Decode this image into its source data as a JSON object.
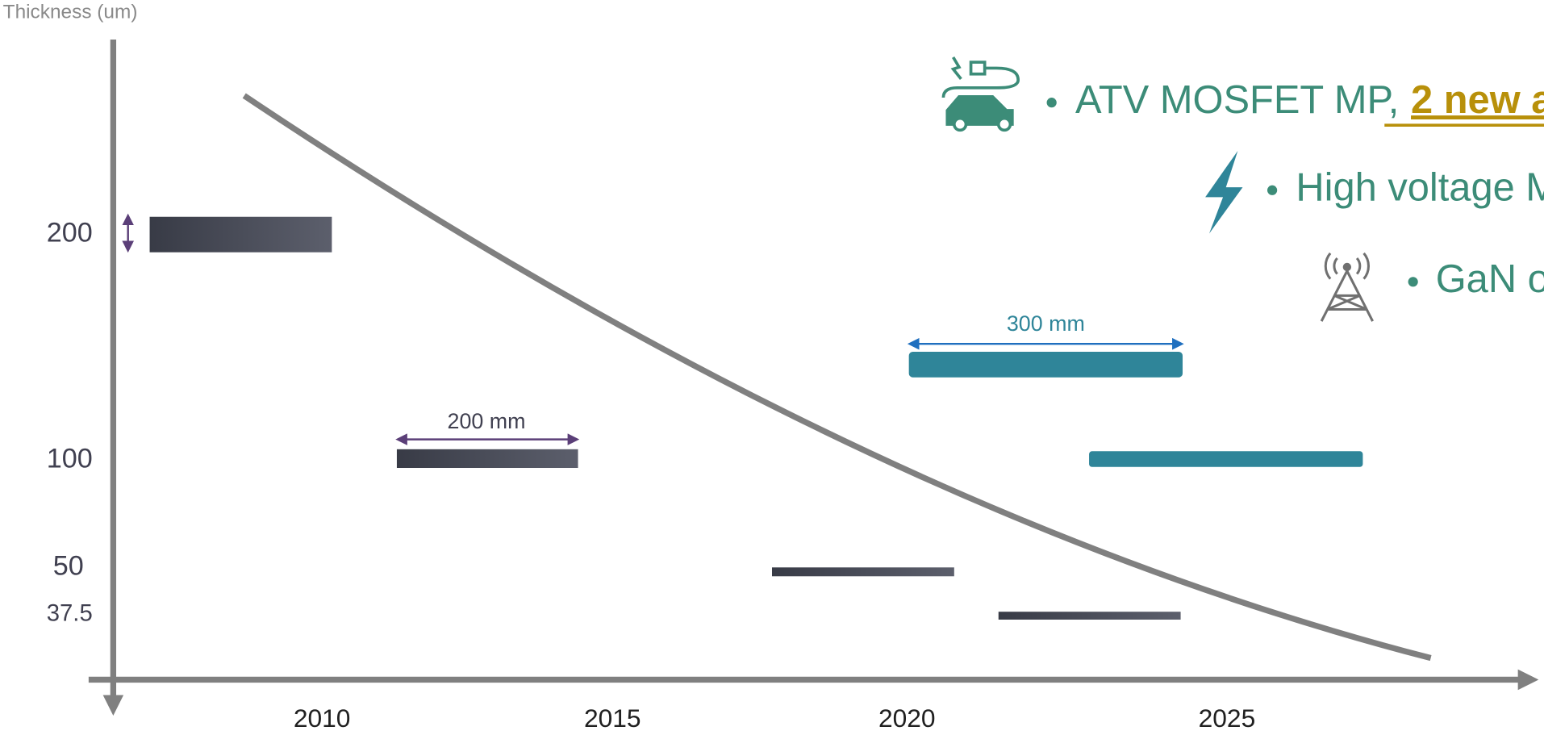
{
  "axis_title": "Thickness (um)",
  "y_labels": [
    "200",
    "100",
    "50",
    "37.5"
  ],
  "x_labels": [
    "2010",
    "2015",
    "2020",
    "2025"
  ],
  "annotations": [
    "200 mm",
    "300 mm"
  ],
  "bullets": [
    {
      "text": "ATV MOSFET MP,",
      "highlight": "2 new a"
    },
    {
      "text": "High voltage M"
    },
    {
      "text": "GaN o"
    }
  ]
}
